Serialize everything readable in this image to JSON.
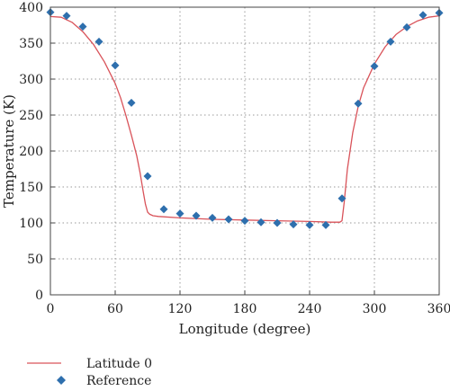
{
  "chart_data": {
    "type": "line",
    "xlabel": "Longitude (degree)",
    "ylabel": "Temperature (K)",
    "xlim": [
      0,
      360
    ],
    "ylim": [
      0,
      400
    ],
    "xticks": [
      0,
      60,
      120,
      180,
      240,
      300,
      360
    ],
    "yticks": [
      0,
      50,
      100,
      150,
      200,
      250,
      300,
      350,
      400
    ],
    "grid": true,
    "legend_position": "bottom-left",
    "series": [
      {
        "name": "Latitude 0",
        "kind": "line",
        "color": "#d9535a",
        "x": [
          0,
          10,
          20,
          30,
          40,
          50,
          60,
          65,
          70,
          75,
          80,
          83,
          86,
          88,
          90,
          92,
          95,
          100,
          120,
          150,
          180,
          210,
          240,
          260,
          268,
          270,
          272,
          275,
          280,
          285,
          290,
          300,
          310,
          320,
          330,
          340,
          350,
          360
        ],
        "values": [
          387,
          386,
          379,
          366,
          348,
          324,
          294,
          274,
          249,
          222,
          193,
          170,
          143,
          126,
          115,
          112,
          110,
          109,
          107,
          105,
          104,
          103,
          102,
          101,
          101,
          103,
          128,
          175,
          226,
          262,
          288,
          321,
          345,
          362,
          373,
          381,
          386,
          388
        ]
      },
      {
        "name": "Reference",
        "kind": "scatter",
        "color": "#2e6fad",
        "marker": "diamond",
        "x": [
          0,
          15,
          30,
          45,
          60,
          75,
          90,
          105,
          120,
          135,
          150,
          165,
          180,
          195,
          210,
          225,
          240,
          255,
          270,
          285,
          300,
          315,
          330,
          345,
          360
        ],
        "values": [
          393,
          388,
          373,
          352,
          319,
          267,
          165,
          119,
          113,
          110,
          107,
          105,
          103,
          101,
          100,
          98,
          97,
          97,
          134,
          266,
          318,
          352,
          372,
          389,
          392
        ]
      }
    ]
  }
}
